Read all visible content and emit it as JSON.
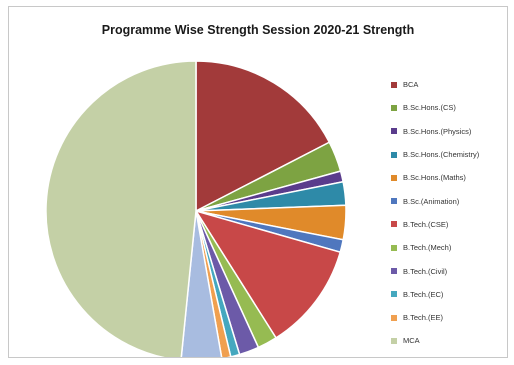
{
  "chart_data": {
    "type": "pie",
    "title": "Programme Wise Strength Session 2020-21 Strength",
    "legend_position": "right",
    "start_angle_deg": 0,
    "direction": "clockwise",
    "slices": [
      {
        "label": "BCA",
        "value": 18.0,
        "color": "#a23a3a"
      },
      {
        "label": "B.Sc.Hons.(CS)",
        "value": 3.4,
        "color": "#7da342"
      },
      {
        "label": "B.Sc.Hons.(Physics)",
        "value": 1.2,
        "color": "#5a3c8c"
      },
      {
        "label": "B.Sc.Hons.(Chemistry)",
        "value": 2.6,
        "color": "#2e8aa8"
      },
      {
        "label": "B.Sc.Hons.(Maths)",
        "value": 3.8,
        "color": "#e08a2a"
      },
      {
        "label": "B.Sc.(Animation)",
        "value": 1.4,
        "color": "#4f77be"
      },
      {
        "label": "B.Tech.(CSE)",
        "value": 12.0,
        "color": "#c84848"
      },
      {
        "label": "B.Tech.(Mech)",
        "value": 2.2,
        "color": "#96bb52"
      },
      {
        "label": "B.Tech.(Civil)",
        "value": 2.2,
        "color": "#6c5aa8"
      },
      {
        "label": "B.Tech.(EC)",
        "value": 1.0,
        "color": "#45a8bf"
      },
      {
        "label": "B.Tech.(EE)",
        "value": 1.0,
        "color": "#f0a050"
      },
      {
        "label": "",
        "value": 4.5,
        "color": "#a8bce0"
      },
      {
        "label": "MCA",
        "value": 50.0,
        "color": "#c4d0a6"
      }
    ]
  }
}
